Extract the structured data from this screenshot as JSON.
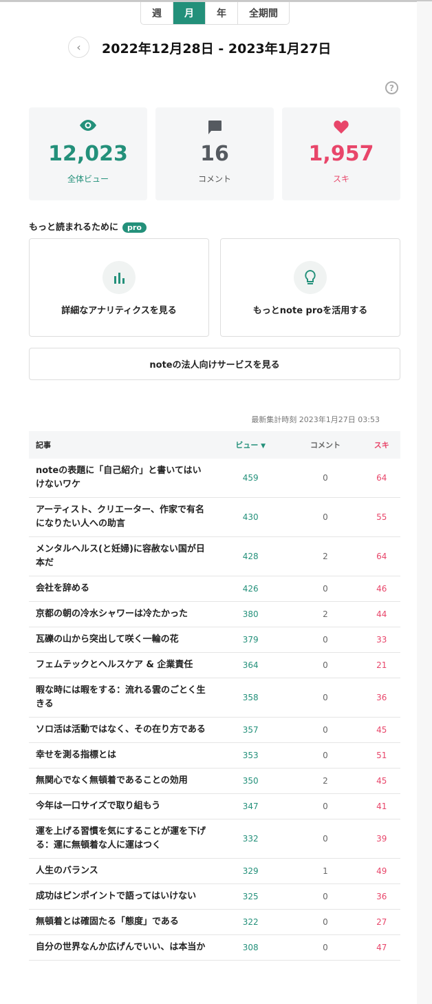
{
  "period_tabs": [
    "週",
    "月",
    "年",
    "全期間"
  ],
  "active_tab": "月",
  "date_range": "2022年12月28日 - 2023年1月27日",
  "stats": [
    {
      "icon": "eye-icon",
      "value": "12,023",
      "label": "全体ビュー",
      "color": "#23907a"
    },
    {
      "icon": "comment-icon",
      "value": "16",
      "label": "コメント",
      "color": "#555a60"
    },
    {
      "icon": "heart-icon",
      "value": "1,957",
      "label": "スキ",
      "color": "#e8466a"
    }
  ],
  "promo": {
    "title": "もっと読まれるために",
    "badge": "pro",
    "cards": [
      "詳細なアナリティクスを見る",
      "もっとnote proを活用する"
    ],
    "corporate": "noteの法人向けサービスを見る"
  },
  "updated": "最新集計時刻 2023年1月27日 03:53",
  "table": {
    "headers": {
      "title": "記事",
      "views": "ビュー",
      "comments": "コメント",
      "likes": "スキ"
    },
    "rows": [
      {
        "title": "noteの表題に「自己紹介」と書いてはいけないワケ",
        "views": "459",
        "comments": "0",
        "likes": "64"
      },
      {
        "title": "アーティスト、クリエーター、作家で有名になりたい人への助言",
        "views": "430",
        "comments": "0",
        "likes": "55"
      },
      {
        "title": "メンタルヘルス(と妊婦)に容赦ない国が日本だ",
        "views": "428",
        "comments": "2",
        "likes": "64"
      },
      {
        "title": "会社を辞める",
        "views": "426",
        "comments": "0",
        "likes": "46"
      },
      {
        "title": "京都の朝の冷水シャワーは冷たかった",
        "views": "380",
        "comments": "2",
        "likes": "44"
      },
      {
        "title": "瓦礫の山から突出して咲く一輪の花",
        "views": "379",
        "comments": "0",
        "likes": "33"
      },
      {
        "title": "フェムテックとヘルスケア & 企業責任",
        "views": "364",
        "comments": "0",
        "likes": "21"
      },
      {
        "title": "暇な時には暇をする：流れる雲のごとく生きる",
        "views": "358",
        "comments": "0",
        "likes": "36"
      },
      {
        "title": "ソロ活は活動ではなく、その在り方である",
        "views": "357",
        "comments": "0",
        "likes": "45"
      },
      {
        "title": "幸せを測る指標とは",
        "views": "353",
        "comments": "0",
        "likes": "51"
      },
      {
        "title": "無関心でなく無頓着であることの効用",
        "views": "350",
        "comments": "2",
        "likes": "45"
      },
      {
        "title": "今年は一口サイズで取り組もう",
        "views": "347",
        "comments": "0",
        "likes": "41"
      },
      {
        "title": "運を上げる習慣を気にすることが運を下げる：運に無頓着な人に運はつく",
        "views": "332",
        "comments": "0",
        "likes": "39"
      },
      {
        "title": "人生のバランス",
        "views": "329",
        "comments": "1",
        "likes": "49"
      },
      {
        "title": "成功はピンポイントで語ってはいけない",
        "views": "325",
        "comments": "0",
        "likes": "36"
      },
      {
        "title": "無頓着とは確固たる「態度」である",
        "views": "322",
        "comments": "0",
        "likes": "27"
      },
      {
        "title": "自分の世界なんか広げんでいい、は本当か",
        "views": "308",
        "comments": "0",
        "likes": "47"
      }
    ]
  }
}
